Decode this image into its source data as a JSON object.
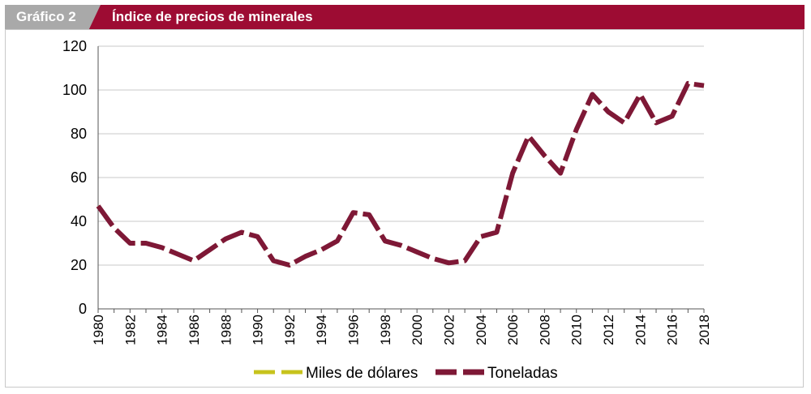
{
  "header": {
    "tab_label": "Gráfico 2",
    "title": "Índice de precios de minerales"
  },
  "colors": {
    "header_bar": "#9d0c33",
    "header_tab": "#a9a9a9",
    "series_miles": "#c7c31d",
    "series_toneladas": "#7e1836",
    "grid": "#c8c8c8"
  },
  "chart_data": {
    "type": "line",
    "title": "Índice de precios de minerales",
    "xlabel": "",
    "ylabel": "",
    "ylim": [
      0,
      120
    ],
    "yticks": [
      0,
      20,
      40,
      60,
      80,
      100,
      120
    ],
    "xtick_labels": [
      "1980",
      "1982",
      "1984",
      "1986",
      "1988",
      "1990",
      "1992",
      "1994",
      "1996",
      "1998",
      "2000",
      "2002",
      "2004",
      "2006",
      "2008",
      "2010",
      "2012",
      "2014",
      "2016",
      "2018"
    ],
    "x": [
      1980,
      1981,
      1982,
      1983,
      1984,
      1985,
      1986,
      1987,
      1988,
      1989,
      1990,
      1991,
      1992,
      1993,
      1994,
      1995,
      1996,
      1997,
      1998,
      1999,
      2000,
      2001,
      2002,
      2003,
      2004,
      2005,
      2006,
      2007,
      2008,
      2009,
      2010,
      2011,
      2012,
      2013,
      2014,
      2015,
      2016,
      2017,
      2018
    ],
    "grid": true,
    "legend_position": "bottom",
    "series": [
      {
        "name": "Miles de dólares",
        "values": [
          47,
          37,
          30,
          30,
          28,
          25,
          22,
          27,
          32,
          35,
          33,
          22,
          20,
          24,
          27,
          31,
          44,
          43,
          31,
          29,
          26,
          23,
          21,
          22,
          33,
          35,
          62,
          79,
          70,
          62,
          82,
          98,
          90,
          85,
          98,
          85,
          88,
          103,
          102
        ]
      },
      {
        "name": "Toneladas",
        "values": [
          47,
          37,
          30,
          30,
          28,
          25,
          22,
          27,
          32,
          35,
          33,
          22,
          20,
          24,
          27,
          31,
          44,
          43,
          31,
          29,
          26,
          23,
          21,
          22,
          33,
          35,
          62,
          79,
          70,
          62,
          82,
          98,
          90,
          85,
          98,
          85,
          88,
          103,
          102
        ]
      }
    ]
  }
}
